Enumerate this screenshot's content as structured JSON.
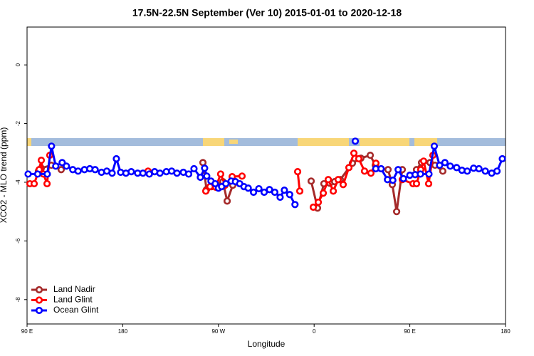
{
  "chart_data": {
    "type": "line",
    "title": "17.5N-22.5N September (Ver 10)   2015-01-01 to 2020-12-18",
    "x_label": "Longitude",
    "y_label": "XCO2 - MLO trend (ppm)",
    "xlim": [
      90,
      540
    ],
    "ylim": [
      -8.83,
      1.29
    ],
    "xticks": [
      {
        "value": 90,
        "label": "90 E"
      },
      {
        "value": 180,
        "label": "180"
      },
      {
        "value": 270,
        "label": "90 W"
      },
      {
        "value": 360,
        "label": "0"
      },
      {
        "value": 450,
        "label": "90 E"
      },
      {
        "value": 540,
        "label": "180"
      }
    ],
    "yticks": [
      0,
      -2,
      -4,
      -6,
      -8
    ],
    "legend": "bottom-left",
    "series": [
      {
        "name": "Land Nadir",
        "color": "#a52a2a",
        "x": [
          100.7,
          103.4,
          112.8,
          122.1,
          190,
          255.4,
          258.8,
          263.4,
          274.2,
          278.2,
          283.5,
          320,
          357.2,
          363.2,
          369.2,
          374.6,
          379.3,
          384.6,
          396,
          404,
          412.8,
          417.5,
          424,
          429.5,
          433.5,
          437.6,
          442.9,
          450,
          456.3,
          461,
          469,
          473.7,
          481
        ],
        "values": [
          -3.62,
          -3.52,
          -3.42,
          -3.57,
          null,
          -3.33,
          -4.25,
          -4.15,
          -3.98,
          -4.64,
          -4.1,
          null,
          -3.96,
          -4.88,
          -4.05,
          -4.03,
          -3.98,
          -3.91,
          -3.35,
          -3.18,
          -3.08,
          -3.42,
          null,
          -3.57,
          -4.08,
          -5.0,
          -3.57,
          null,
          -3.57,
          -3.33,
          -3.33,
          -3.42,
          -3.62
        ]
      },
      {
        "name": "Land Glint",
        "color": "#ff0000",
        "x": [
          92.7,
          96.7,
          101.4,
          103.4,
          105.4,
          108.8,
          111.4,
          150,
          203.8,
          230,
          258.1,
          262.1,
          267.5,
          272.1,
          276.2,
          282.9,
          292.2,
          320,
          344.5,
          346.5,
          352,
          359.2,
          363.9,
          368.6,
          373.3,
          378,
          382.6,
          387.3,
          392.7,
          397.4,
          402,
          407.4,
          413.4,
          418.1,
          430,
          442.9,
          453,
          456.3,
          460.3,
          463,
          467.7,
          471.7
        ],
        "values": [
          -4.05,
          -4.05,
          -3.57,
          -3.25,
          -3.72,
          -4.05,
          -3.08,
          null,
          -3.62,
          null,
          -4.3,
          -4.15,
          -4.17,
          -3.72,
          -4.1,
          -3.81,
          -3.79,
          null,
          -3.64,
          -4.3,
          null,
          -4.85,
          -4.68,
          -4.37,
          -3.91,
          -4.3,
          -3.91,
          -4.08,
          -3.5,
          -3.01,
          -3.2,
          -3.62,
          -3.69,
          -3.35,
          null,
          -3.91,
          -4.05,
          -4.05,
          -3.57,
          -3.28,
          -4.05,
          -3.08
        ]
      },
      {
        "name": "Ocean Glint",
        "color": "#0000ff",
        "x": [
          91,
          100,
          109,
          113,
          117,
          123,
          127,
          133,
          138,
          144,
          149,
          154,
          160,
          165,
          170,
          174,
          178,
          183,
          188,
          194,
          199,
          205,
          210,
          215,
          221,
          226,
          231,
          237,
          242,
          247,
          253,
          257,
          259,
          263,
          267,
          270,
          273,
          277,
          282,
          286,
          290,
          294,
          298,
          303,
          308,
          313,
          318,
          323,
          328,
          332,
          337,
          342,
          370,
          398.7,
          410,
          418,
          423,
          429,
          434,
          439,
          444,
          450,
          455,
          460,
          468,
          473,
          478,
          483,
          488,
          494,
          499,
          504,
          510,
          515,
          521,
          527,
          532,
          537
        ],
        "values": [
          -3.72,
          -3.72,
          -3.72,
          -2.77,
          -3.45,
          -3.33,
          -3.45,
          -3.57,
          -3.62,
          -3.57,
          -3.54,
          -3.57,
          -3.66,
          -3.62,
          -3.69,
          -3.2,
          -3.66,
          -3.69,
          -3.64,
          -3.69,
          -3.69,
          -3.72,
          -3.64,
          -3.69,
          -3.64,
          -3.62,
          -3.69,
          -3.66,
          -3.72,
          -3.54,
          -3.83,
          -3.52,
          -3.79,
          -3.96,
          -4.05,
          -4.2,
          -4.15,
          -4.05,
          -3.96,
          -3.98,
          -4.05,
          -4.15,
          -4.2,
          -4.34,
          -4.22,
          -4.34,
          -4.25,
          -4.34,
          -4.51,
          -4.27,
          -4.42,
          -4.76,
          null,
          -2.6,
          null,
          -3.54,
          -3.54,
          -3.91,
          -3.93,
          -3.57,
          -3.88,
          -3.76,
          -3.74,
          -3.72,
          -3.72,
          -2.77,
          -3.42,
          -3.33,
          -3.45,
          -3.5,
          -3.59,
          -3.62,
          -3.52,
          -3.54,
          -3.62,
          -3.69,
          -3.62,
          -3.2
        ]
      }
    ]
  }
}
